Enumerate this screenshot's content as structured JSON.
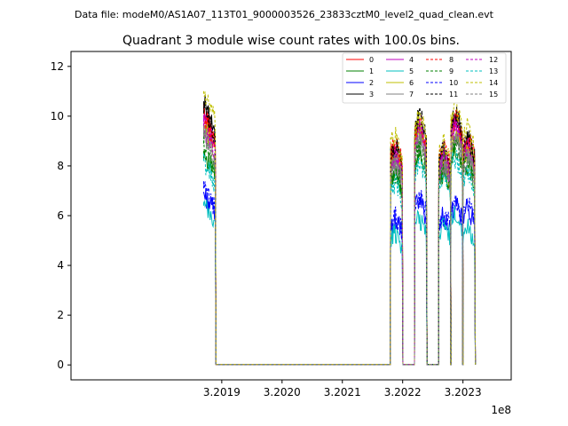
{
  "suptitle": "Data file: modeM0/AS1A07_113T01_9000003526_23833cztM0_level2_quad_clean.evt",
  "chart_data": {
    "type": "line",
    "title": "Quadrant 3 module wise count rates with 100.0s bins.",
    "xlabel": "",
    "ylabel": "",
    "x_offset_label": "1e8",
    "xlim": [
      3.20165,
      3.20238
    ],
    "ylim": [
      -0.6,
      12.6
    ],
    "x_ticks": [
      {
        "value": 3.2019,
        "label": "3.2019"
      },
      {
        "value": 3.202,
        "label": "3.2020"
      },
      {
        "value": 3.2021,
        "label": "3.2021"
      },
      {
        "value": 3.2022,
        "label": "3.2022"
      },
      {
        "value": 3.2023,
        "label": "3.2023"
      }
    ],
    "y_ticks": [
      {
        "value": 0,
        "label": "0"
      },
      {
        "value": 2,
        "label": "2"
      },
      {
        "value": 4,
        "label": "4"
      },
      {
        "value": 6,
        "label": "6"
      },
      {
        "value": 8,
        "label": "8"
      },
      {
        "value": 10,
        "label": "10"
      },
      {
        "value": 12,
        "label": "12"
      }
    ],
    "grid": false,
    "legend": {
      "placement": "top-right",
      "columns": 4
    },
    "on_segments": [
      [
        3.20187,
        3.20189
      ],
      [
        3.20218,
        3.2022
      ],
      [
        3.20222,
        3.20224
      ],
      [
        3.20226,
        3.20228
      ],
      [
        3.20228,
        3.2023
      ],
      [
        3.2023,
        3.20232
      ]
    ],
    "off_level": 0.02,
    "series": [
      {
        "name": "0",
        "color": "#ff0000",
        "dash": "solid",
        "segment_levels": [
          10.2,
          8.1,
          9.0,
          7.6,
          9.2,
          8.4
        ]
      },
      {
        "name": "1",
        "color": "#008000",
        "dash": "solid",
        "segment_levels": [
          8.6,
          7.2,
          8.0,
          7.2,
          8.2,
          7.6
        ]
      },
      {
        "name": "2",
        "color": "#0000ff",
        "dash": "solid",
        "segment_levels": [
          6.9,
          5.5,
          6.2,
          5.6,
          6.0,
          5.9
        ]
      },
      {
        "name": "3",
        "color": "#000000",
        "dash": "solid",
        "segment_levels": [
          10.6,
          8.3,
          9.3,
          8.0,
          9.5,
          8.7
        ]
      },
      {
        "name": "4",
        "color": "#bf00bf",
        "dash": "solid",
        "segment_levels": [
          9.9,
          8.0,
          8.9,
          7.9,
          9.1,
          8.3
        ]
      },
      {
        "name": "5",
        "color": "#00bfbf",
        "dash": "solid",
        "segment_levels": [
          6.4,
          5.0,
          5.5,
          5.3,
          5.7,
          5.2
        ]
      },
      {
        "name": "6",
        "color": "#bfbf00",
        "dash": "solid",
        "segment_levels": [
          9.7,
          8.1,
          8.7,
          7.7,
          8.8,
          8.1
        ]
      },
      {
        "name": "7",
        "color": "#808080",
        "dash": "solid",
        "segment_levels": [
          9.4,
          7.7,
          8.5,
          7.5,
          8.7,
          7.9
        ]
      },
      {
        "name": "8",
        "color": "#ff0000",
        "dash": "dashed",
        "segment_levels": [
          10.1,
          8.4,
          9.2,
          8.3,
          9.4,
          8.6
        ]
      },
      {
        "name": "9",
        "color": "#008000",
        "dash": "dashed",
        "segment_levels": [
          8.9,
          7.3,
          8.1,
          7.3,
          8.3,
          7.7
        ]
      },
      {
        "name": "10",
        "color": "#0000ff",
        "dash": "dashed",
        "segment_levels": [
          7.1,
          5.6,
          6.3,
          5.7,
          6.1,
          6.0
        ]
      },
      {
        "name": "11",
        "color": "#000000",
        "dash": "dashed",
        "segment_levels": [
          10.4,
          8.2,
          9.4,
          8.1,
          9.4,
          8.5
        ]
      },
      {
        "name": "12",
        "color": "#bf00bf",
        "dash": "dashed",
        "segment_levels": [
          9.6,
          7.9,
          8.8,
          7.8,
          9.0,
          8.2
        ]
      },
      {
        "name": "13",
        "color": "#00bfbf",
        "dash": "dashed",
        "segment_levels": [
          8.2,
          6.9,
          7.6,
          7.0,
          7.8,
          7.3
        ]
      },
      {
        "name": "14",
        "color": "#bfbf00",
        "dash": "dashed",
        "segment_levels": [
          11.0,
          8.7,
          9.4,
          8.4,
          9.8,
          9.0
        ]
      },
      {
        "name": "15",
        "color": "#808080",
        "dash": "dashed",
        "segment_levels": [
          9.2,
          7.6,
          8.4,
          7.6,
          8.6,
          7.8
        ]
      }
    ]
  }
}
